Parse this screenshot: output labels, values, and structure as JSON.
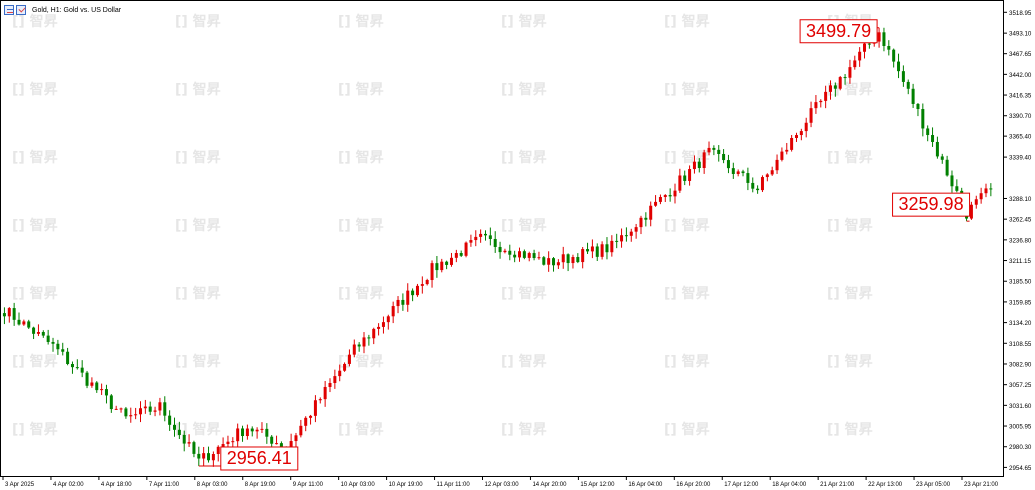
{
  "header": {
    "symbol_text": "Gold, H1:  Gold vs. US Dollar",
    "icons": [
      "chart-properties-icon",
      "one-click-trading-icon"
    ]
  },
  "watermark_text": "智昇",
  "colors": {
    "up": "#e00000",
    "down": "#008000",
    "axis": "#000000",
    "label_border": "#e00000",
    "label_text": "#e00000",
    "watermark": "#e6e6e6"
  },
  "chart_data": {
    "type": "candlestick",
    "title": "",
    "xlabel": "",
    "ylabel": "",
    "y_tick_labels": [
      "3518.95",
      "3493.10",
      "3467.65",
      "3442.00",
      "3416.35",
      "3390.70",
      "3365.40",
      "3339.40",
      "3288.10",
      "3262.45",
      "3236.80",
      "3211.15",
      "3185.50",
      "3159.85",
      "3134.20",
      "3108.55",
      "3082.90",
      "3057.25",
      "3031.60",
      "3005.95",
      "2980.30",
      "2954.65"
    ],
    "ylim": [
      2944,
      3528
    ],
    "x_tick_labels": [
      "3 Apr 2025",
      "4 Apr 02:00",
      "4 Apr 18:00",
      "7 Apr 11:00",
      "8 Apr 03:00",
      "8 Apr 19:00",
      "9 Apr 11:00",
      "10 Apr 03:00",
      "10 Apr 19:00",
      "11 Apr 11:00",
      "12 Apr 03:00",
      "14 Apr 20:00",
      "15 Apr 12:00",
      "16 Apr 04:00",
      "16 Apr 20:00",
      "17 Apr 12:00",
      "18 Apr 04:00",
      "21 Apr 21:00",
      "22 Apr 13:00",
      "23 Apr 05:00",
      "23 Apr 21:00"
    ],
    "key_points": [
      {
        "label": "2956.41",
        "index": 40,
        "value": 2956.41,
        "kind": "low"
      },
      {
        "label": "3499.79",
        "index": 180,
        "value": 3499.79,
        "kind": "high"
      },
      {
        "label": "3259.98",
        "index": 198,
        "value": 3259.98,
        "kind": "low"
      }
    ],
    "segments": [
      {
        "from": 0,
        "to": 10,
        "start": 3150,
        "end": 3105
      },
      {
        "from": 10,
        "to": 25,
        "start": 3105,
        "end": 3015
      },
      {
        "from": 25,
        "to": 32,
        "start": 3015,
        "end": 3030
      },
      {
        "from": 32,
        "to": 40,
        "start": 3030,
        "end": 2962
      },
      {
        "from": 40,
        "to": 50,
        "start": 2962,
        "end": 3005
      },
      {
        "from": 50,
        "to": 58,
        "start": 3005,
        "end": 2980
      },
      {
        "from": 58,
        "to": 72,
        "start": 2980,
        "end": 3100
      },
      {
        "from": 72,
        "to": 88,
        "start": 3100,
        "end": 3200
      },
      {
        "from": 88,
        "to": 98,
        "start": 3200,
        "end": 3238
      },
      {
        "from": 98,
        "to": 112,
        "start": 3238,
        "end": 3208
      },
      {
        "from": 112,
        "to": 125,
        "start": 3208,
        "end": 3228
      },
      {
        "from": 125,
        "to": 145,
        "start": 3228,
        "end": 3345
      },
      {
        "from": 145,
        "to": 155,
        "start": 3345,
        "end": 3300
      },
      {
        "from": 155,
        "to": 165,
        "start": 3300,
        "end": 3385
      },
      {
        "from": 165,
        "to": 180,
        "start": 3385,
        "end": 3495
      },
      {
        "from": 180,
        "to": 190,
        "start": 3495,
        "end": 3370
      },
      {
        "from": 190,
        "to": 198,
        "start": 3370,
        "end": 3270
      },
      {
        "from": 198,
        "to": 203,
        "start": 3270,
        "end": 3300
      }
    ],
    "grid": false,
    "legend": "none"
  }
}
